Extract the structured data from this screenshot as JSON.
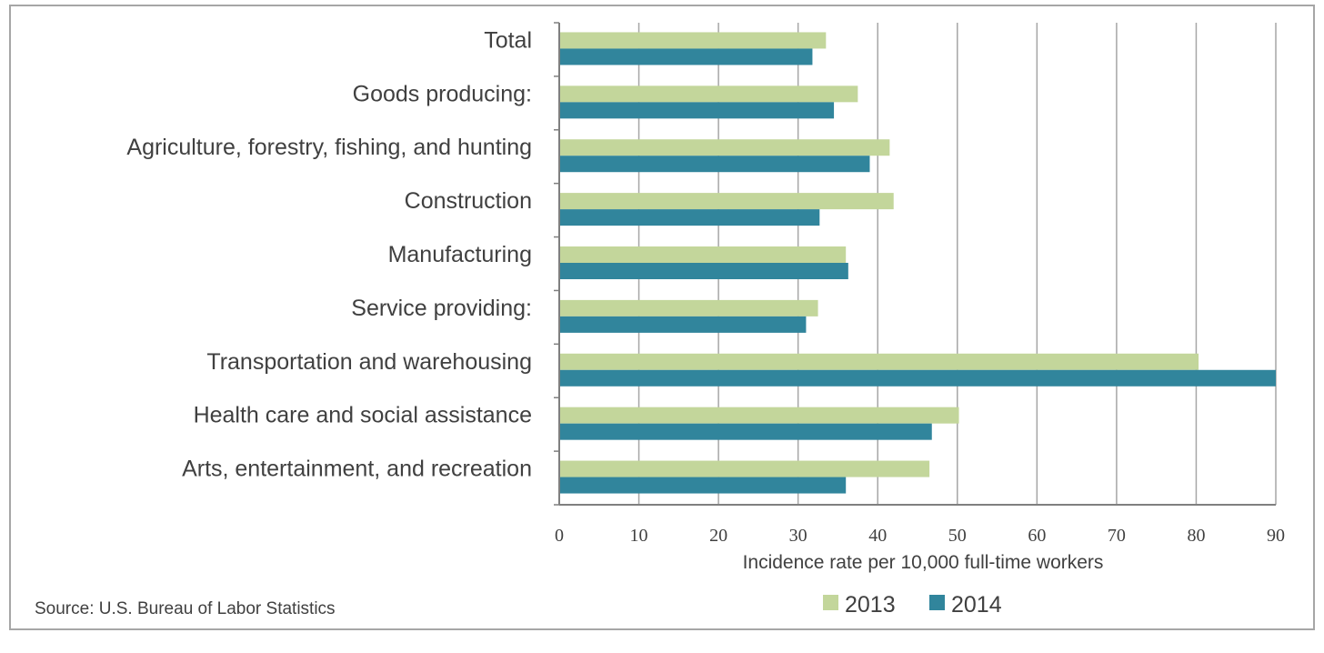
{
  "chart_data": {
    "type": "bar",
    "orientation": "horizontal",
    "categories": [
      "Total",
      "Goods producing:",
      "Agriculture, forestry, fishing, and hunting",
      "Construction",
      "Manufacturing",
      "Service providing:",
      "Transportation and warehousing",
      "Health care and social assistance",
      "Arts, entertainment, and recreation"
    ],
    "series": [
      {
        "name": "2013",
        "color": "#c3d69b",
        "values": [
          33.5,
          37.5,
          41.5,
          42.0,
          36.0,
          32.5,
          80.3,
          50.2,
          46.5
        ]
      },
      {
        "name": "2014",
        "color": "#31859c",
        "values": [
          31.8,
          34.5,
          39.0,
          32.7,
          36.3,
          31.0,
          90.0,
          46.8,
          36.0
        ]
      }
    ],
    "xlabel": "Incidence rate per 10,000 full-time workers",
    "xlim": [
      0,
      90
    ],
    "xticks": [
      0,
      10,
      20,
      30,
      40,
      50,
      60,
      70,
      80,
      90
    ],
    "grid": "vertical",
    "legend_position": "bottom"
  },
  "source_note": "Source: U.S. Bureau of Labor Statistics"
}
